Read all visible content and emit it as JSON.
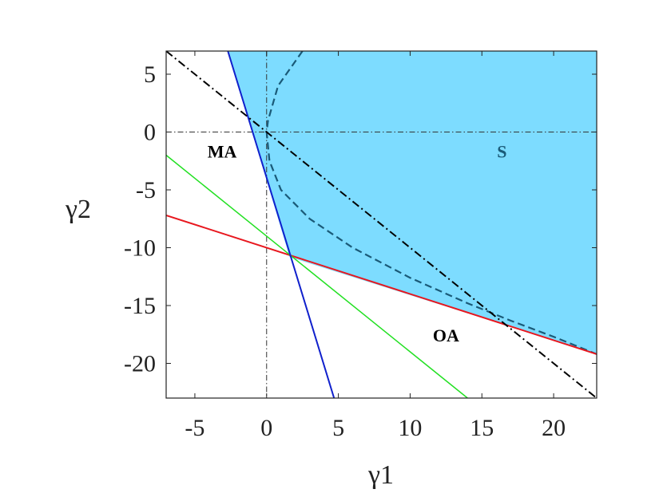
{
  "chart_data": {
    "type": "area",
    "xlabel": "γ1",
    "ylabel": "γ2",
    "xlim": [
      -7,
      23
    ],
    "ylim": [
      -23,
      7
    ],
    "xticks": [
      -5,
      0,
      5,
      10,
      15,
      20
    ],
    "yticks": [
      5,
      0,
      -5,
      -10,
      -15,
      -20
    ],
    "xtick_labels": [
      "-5",
      "0",
      "5",
      "10",
      "15",
      "20"
    ],
    "ytick_labels": [
      "5",
      "0",
      "-5",
      "-10",
      "-15",
      "-20"
    ],
    "grid": false,
    "colors": {
      "region_fill": "#7ddcff",
      "red_line": "#e8171e",
      "green_line": "#22e022",
      "blue_line": "#1020cc",
      "black_dashdot": "#000000",
      "dashed_curve": "#1a5a78",
      "region_label_S": "#1a5a78",
      "region_label_dark": "#000000"
    },
    "region_S_boundary": [
      [
        -2.7,
        7
      ],
      [
        1.6,
        -10.8
      ],
      [
        23,
        -19.2
      ],
      [
        23,
        7
      ]
    ],
    "lines": [
      {
        "color": "red",
        "style": "solid",
        "points": [
          [
            -7,
            -7.2
          ],
          [
            23,
            -19.2
          ]
        ]
      },
      {
        "color": "green",
        "style": "solid",
        "points": [
          [
            -7,
            -2.0
          ],
          [
            14,
            -23
          ]
        ]
      },
      {
        "color": "blue",
        "style": "solid",
        "points": [
          [
            -2.7,
            7
          ],
          [
            4.7,
            -23
          ]
        ]
      },
      {
        "color": "black",
        "style": "dashdot",
        "points": [
          [
            -7,
            7
          ],
          [
            23,
            -23
          ]
        ]
      }
    ],
    "zero_lines": [
      {
        "orientation": "vertical",
        "x": 0
      },
      {
        "orientation": "horizontal",
        "y": 0
      }
    ],
    "dashed_curve": [
      [
        2.5,
        7
      ],
      [
        0.8,
        4.0
      ],
      [
        0.1,
        1.0
      ],
      [
        0.0,
        0
      ],
      [
        0.2,
        -2.5
      ],
      [
        1.0,
        -5.0
      ],
      [
        3.0,
        -7.5
      ],
      [
        6.0,
        -10.0
      ],
      [
        10.0,
        -12.6
      ],
      [
        14.0,
        -14.8
      ],
      [
        17.0,
        -16.3
      ],
      [
        20.0,
        -17.7
      ],
      [
        23.0,
        -19.2
      ]
    ],
    "annotations": [
      {
        "text": "MA",
        "x": -3.1,
        "y": -2.2,
        "color": "dark"
      },
      {
        "text": "S",
        "x": 16.4,
        "y": -2.2,
        "color": "S"
      },
      {
        "text": "OA",
        "x": 12.5,
        "y": -18.1,
        "color": "dark"
      }
    ]
  }
}
